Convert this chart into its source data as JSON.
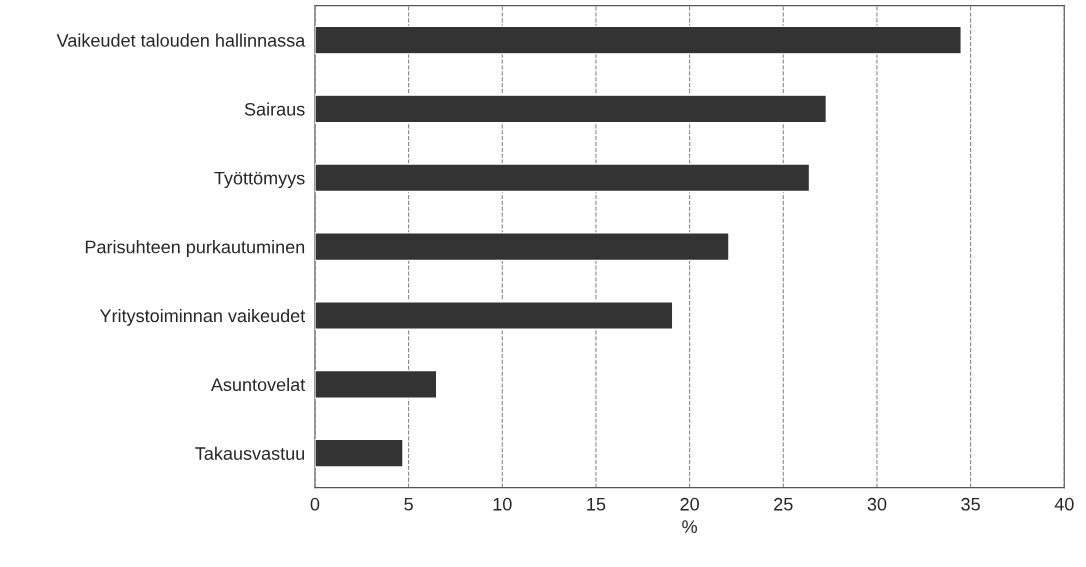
{
  "chart_data": {
    "type": "bar",
    "orientation": "horizontal",
    "xlabel": "%",
    "categories": [
      "Vaikeudet talouden hallinnassa",
      "Sairaus",
      "Työttömyys",
      "Parisuhteen purkautuminen",
      "Yritystoiminnan vaikeudet",
      "Asuntovelat",
      "Takausvastuu"
    ],
    "values": [
      34.5,
      27.3,
      26.4,
      22.1,
      19.1,
      6.5,
      4.7
    ],
    "color": "#333333",
    "xlim": [
      0,
      40
    ],
    "xticks": [
      0,
      5,
      10,
      15,
      20,
      25,
      30,
      35,
      40
    ],
    "grid": "x"
  }
}
